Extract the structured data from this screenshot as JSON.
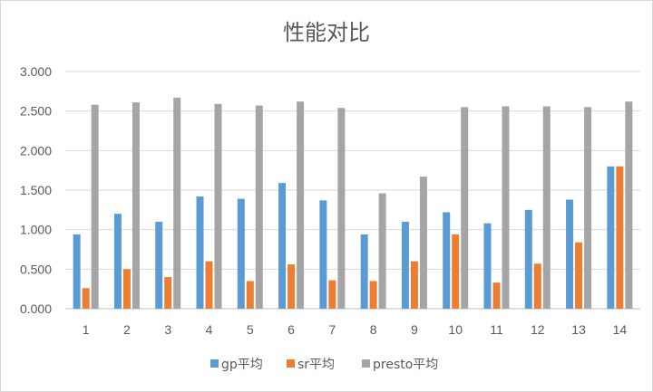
{
  "chart_data": {
    "type": "bar",
    "title": "性能对比",
    "xlabel": "",
    "ylabel": "",
    "ylim": [
      0,
      3
    ],
    "ytick_labels": [
      "0.000",
      "0.500",
      "1.000",
      "1.500",
      "2.000",
      "2.500",
      "3.000"
    ],
    "grid": true,
    "legend_position": "bottom",
    "categories": [
      "1",
      "2",
      "3",
      "4",
      "5",
      "6",
      "7",
      "8",
      "9",
      "10",
      "11",
      "12",
      "13",
      "14"
    ],
    "series": [
      {
        "name": "gp平均",
        "color": "#5b9bd5",
        "values": [
          0.94,
          1.2,
          1.1,
          1.42,
          1.39,
          1.59,
          1.37,
          0.94,
          1.1,
          1.22,
          1.08,
          1.25,
          1.38,
          1.8
        ]
      },
      {
        "name": "sr平均",
        "color": "#ed7d31",
        "values": [
          0.26,
          0.5,
          0.4,
          0.6,
          0.35,
          0.56,
          0.36,
          0.35,
          0.6,
          0.94,
          0.33,
          0.57,
          0.84,
          1.8
        ]
      },
      {
        "name": "presto平均",
        "color": "#a5a5a5",
        "values": [
          2.58,
          2.61,
          2.67,
          2.59,
          2.57,
          2.62,
          2.54,
          1.46,
          1.67,
          2.55,
          2.56,
          2.56,
          2.55,
          2.62
        ]
      }
    ]
  }
}
